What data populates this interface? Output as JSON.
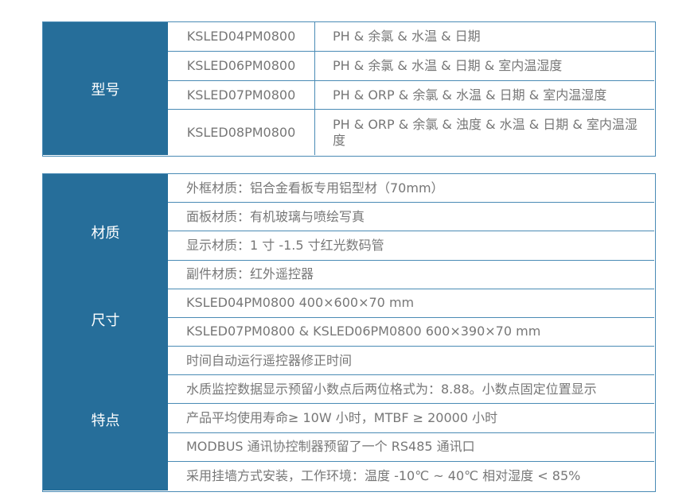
{
  "models": {
    "header": "型号",
    "rows": [
      {
        "model": "KSLED04PM0800",
        "desc": "PH & 余氯 & 水温 & 日期"
      },
      {
        "model": "KSLED06PM0800",
        "desc": "PH & 余氯 & 水温 & 日期 & 室内温湿度"
      },
      {
        "model": "KSLED07PM0800",
        "desc": "PH & ORP & 余氯 & 水温 & 日期 & 室内温湿度"
      },
      {
        "model": "KSLED08PM0800",
        "desc": "PH & ORP & 余氯 & 浊度 & 水温 & 日期 & 室内温湿度"
      }
    ]
  },
  "specs": {
    "groups": [
      {
        "header": "材质"
      },
      {
        "header": "尺寸"
      },
      {
        "header": "特点"
      }
    ],
    "rows": [
      "外框材质：铝合金看板专用铝型材（70mm）",
      "面板材质：有机玻璃与喷绘写真",
      "显示材质：1 寸 -1.5 寸红光数码管",
      "副件材质：红外遥控器",
      "KSLED04PM0800  400×600×70 mm",
      "KSLED07PM0800 & KSLED06PM0800  600×390×70 mm",
      "时间自动运行遥控器修正时间",
      "水质监控数据显示预留小数点后两位格式为：8.88。小数点固定位置显示",
      "产品平均使用寿命≥ 10W 小时，MTBF ≥ 20000 小时",
      "MODBUS 通讯协控制器预留了一个 RS485 通讯口",
      "采用挂墙方式安装，工作环境：温度 -10℃ ~ 40℃  相对湿度 < 85%"
    ]
  },
  "colors": {
    "header_bg": "#266e9a",
    "border": "#4a8bb5",
    "text": "#777777"
  }
}
